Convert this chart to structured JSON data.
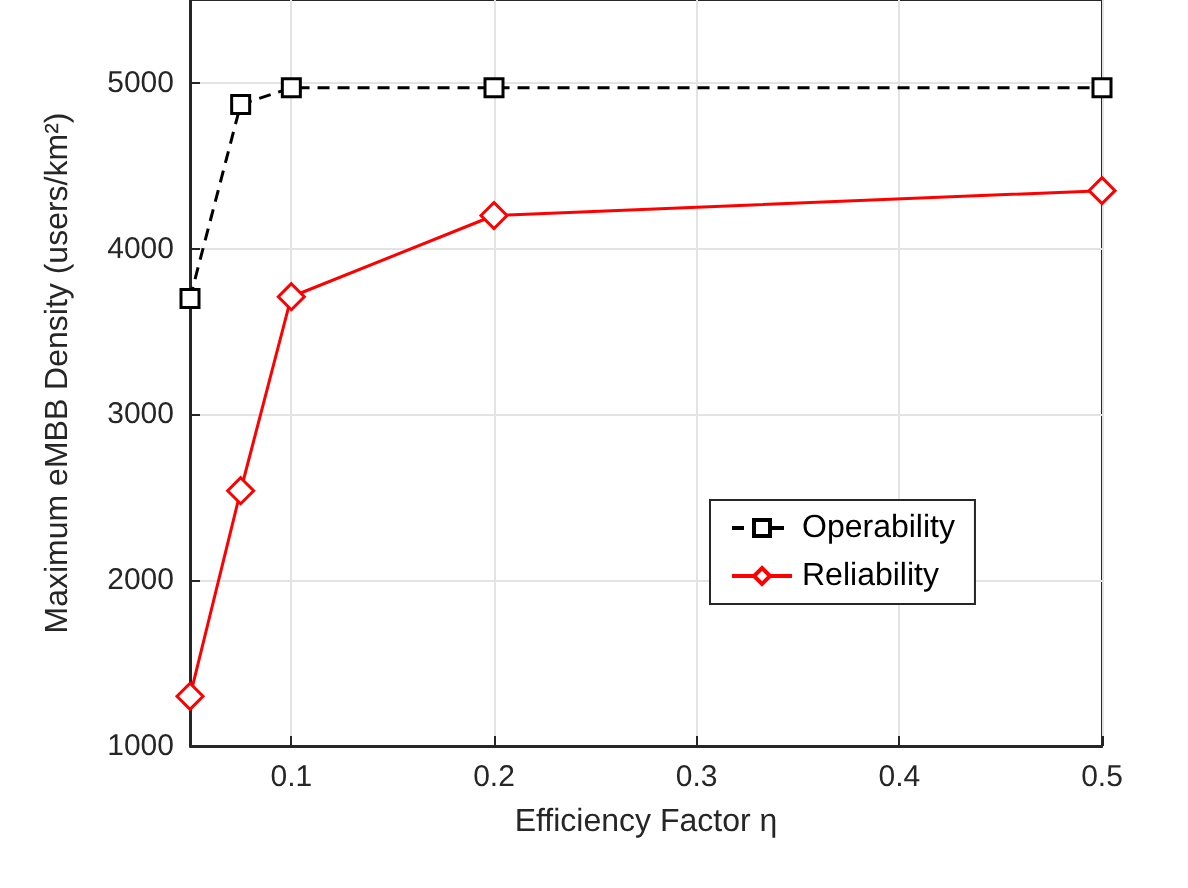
{
  "chart_data": {
    "type": "line",
    "xlabel": "Efficiency Factor η",
    "ylabel": "Maximum eMBB Density (users/km²)",
    "x": [
      0.05,
      0.075,
      0.1,
      0.2,
      0.5
    ],
    "series": [
      {
        "name": "Operability",
        "color": "#000000",
        "values": [
          3700,
          4870,
          4970,
          4970,
          4970
        ],
        "marker": "square",
        "line_style": "dashed"
      },
      {
        "name": "Reliability",
        "color": "#ff0000",
        "values": [
          1300,
          2540,
          3710,
          4200,
          4350
        ],
        "marker": "diamond",
        "line_style": "solid"
      }
    ],
    "xlim": [
      0.05,
      0.5
    ],
    "xticks": [
      0.1,
      0.2,
      0.3,
      0.4,
      0.5
    ],
    "ylim": [
      1000,
      5500
    ],
    "yticks": [
      1000,
      2000,
      3000,
      4000,
      5000
    ],
    "grid": true,
    "legend": "right"
  }
}
